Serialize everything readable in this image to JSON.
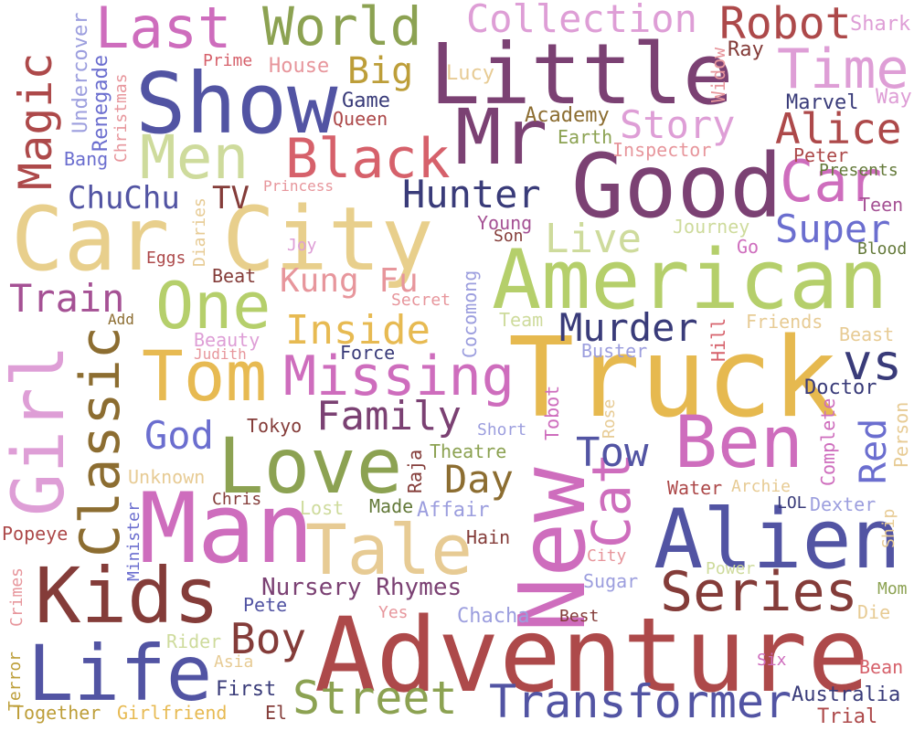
{
  "words": [
    {
      "text": "Car City",
      "color": "#e8cf8c"
    },
    {
      "text": "Truck",
      "color": "#e6b94f"
    },
    {
      "text": "Adventure",
      "color": "#ad494a"
    },
    {
      "text": "American",
      "color": "#b5cf6b"
    },
    {
      "text": "Man",
      "color": "#ce6dbd"
    },
    {
      "text": "New",
      "color": "#ce6dbd"
    },
    {
      "text": "Good",
      "color": "#7b4173"
    },
    {
      "text": "Show",
      "color": "#5254a3"
    },
    {
      "text": "Little",
      "color": "#7b4173"
    },
    {
      "text": "Alien",
      "color": "#5254a3"
    },
    {
      "text": "Love",
      "color": "#8ca252"
    },
    {
      "text": "Kids",
      "color": "#843c39"
    },
    {
      "text": "Life",
      "color": "#5254a3"
    },
    {
      "text": "Tale",
      "color": "#e7cb94"
    },
    {
      "text": "Ben",
      "color": "#ce6dbd"
    },
    {
      "text": "Mr",
      "color": "#7b4173"
    },
    {
      "text": "Tom",
      "color": "#e7ba52"
    },
    {
      "text": "Girl",
      "color": "#de9ed6"
    },
    {
      "text": "Missing",
      "color": "#ce6dbd"
    },
    {
      "text": "Men",
      "color": "#cedb9c"
    },
    {
      "text": "Last",
      "color": "#ce6dbd"
    },
    {
      "text": "One",
      "color": "#b5cf6b"
    },
    {
      "text": "Black",
      "color": "#d6616b"
    },
    {
      "text": "Transformer",
      "color": "#5254a3"
    },
    {
      "text": "Classic",
      "color": "#8c6d31"
    },
    {
      "text": "Car",
      "color": "#ce6dbd"
    },
    {
      "text": "Series",
      "color": "#843c39"
    },
    {
      "text": "Time",
      "color": "#de9ed6"
    },
    {
      "text": "World",
      "color": "#8ca252"
    },
    {
      "text": "Magic",
      "color": "#ad494a"
    },
    {
      "text": "Cat",
      "color": "#ce6dbd"
    },
    {
      "text": "Street",
      "color": "#8ca252"
    },
    {
      "text": "Robot",
      "color": "#ad494a"
    },
    {
      "text": "Collection",
      "color": "#de9ed6"
    },
    {
      "text": "Alice",
      "color": "#ad494a"
    },
    {
      "text": "Hunter",
      "color": "#393b79"
    },
    {
      "text": "Murder",
      "color": "#393b79"
    },
    {
      "text": "Boy",
      "color": "#843c39"
    },
    {
      "text": "Story",
      "color": "#de9ed6"
    },
    {
      "text": "vs",
      "color": "#393b79"
    },
    {
      "text": "Inside",
      "color": "#e7ba52"
    },
    {
      "text": "Family",
      "color": "#7b4173"
    },
    {
      "text": "Live",
      "color": "#cedb9c"
    },
    {
      "text": "Tow",
      "color": "#5254a3"
    },
    {
      "text": "Day",
      "color": "#8c6d31"
    },
    {
      "text": "Red",
      "color": "#6b6ecf"
    },
    {
      "text": "Train",
      "color": "#a55194"
    },
    {
      "text": "Super",
      "color": "#6b6ecf"
    },
    {
      "text": "Big",
      "color": "#bd9e39"
    },
    {
      "text": "God",
      "color": "#6b6ecf"
    },
    {
      "text": "Kung Fu",
      "color": "#e7969c"
    },
    {
      "text": "Nursery Rhymes",
      "color": "#7b4173"
    },
    {
      "text": "ChuChu",
      "color": "#5254a3"
    },
    {
      "text": "TV",
      "color": "#843c39"
    },
    {
      "text": "Undercover",
      "color": "#9c9ede"
    },
    {
      "text": "Renegade",
      "color": "#6b6ecf"
    },
    {
      "text": "Christmas",
      "color": "#e7969c"
    },
    {
      "text": "Bang",
      "color": "#6b6ecf"
    },
    {
      "text": "Prime",
      "color": "#d6616b"
    },
    {
      "text": "House",
      "color": "#e7969c"
    },
    {
      "text": "Game",
      "color": "#393b79"
    },
    {
      "text": "Queen",
      "color": "#ad494a"
    },
    {
      "text": "Lucy",
      "color": "#e7cb94"
    },
    {
      "text": "Academy",
      "color": "#8c6d31"
    },
    {
      "text": "Earth",
      "color": "#8ca252"
    },
    {
      "text": "Inspector",
      "color": "#e7969c"
    },
    {
      "text": "Ray",
      "color": "#843c39"
    },
    {
      "text": "Shark",
      "color": "#de9ed6"
    },
    {
      "text": "Widow",
      "color": "#e7969c"
    },
    {
      "text": "Marvel",
      "color": "#393b79"
    },
    {
      "text": "Way",
      "color": "#de9ed6"
    },
    {
      "text": "Peter",
      "color": "#ad494a"
    },
    {
      "text": "Presents",
      "color": "#637939"
    },
    {
      "text": "Teen",
      "color": "#a55194"
    },
    {
      "text": "Blood",
      "color": "#637939"
    },
    {
      "text": "Princess",
      "color": "#e7969c"
    },
    {
      "text": "Diaries",
      "color": "#e7cb94"
    },
    {
      "text": "Joy",
      "color": "#de9ed6"
    },
    {
      "text": "Eggs",
      "color": "#ad494a"
    },
    {
      "text": "Beat",
      "color": "#843c39"
    },
    {
      "text": "Young",
      "color": "#a55194"
    },
    {
      "text": "Son",
      "color": "#843c39"
    },
    {
      "text": "Journey",
      "color": "#cedb9c"
    },
    {
      "text": "Go",
      "color": "#ce6dbd"
    },
    {
      "text": "Cocomong",
      "color": "#9c9ede"
    },
    {
      "text": "Secret",
      "color": "#e7969c"
    },
    {
      "text": "Team",
      "color": "#cedb9c"
    },
    {
      "text": "Hill",
      "color": "#d6616b"
    },
    {
      "text": "Friends",
      "color": "#e7cb94"
    },
    {
      "text": "Beast",
      "color": "#e7cb94"
    },
    {
      "text": "Add",
      "color": "#8c6d31"
    },
    {
      "text": "Beauty",
      "color": "#de9ed6"
    },
    {
      "text": "Judith",
      "color": "#e7969c"
    },
    {
      "text": "Force",
      "color": "#393b79"
    },
    {
      "text": "Buster",
      "color": "#9c9ede"
    },
    {
      "text": "Doctor",
      "color": "#393b79"
    },
    {
      "text": "Person",
      "color": "#e7cb94"
    },
    {
      "text": "Complete",
      "color": "#ce6dbd"
    },
    {
      "text": "Tokyo",
      "color": "#843c39"
    },
    {
      "text": "Short",
      "color": "#9c9ede"
    },
    {
      "text": "Tobot",
      "color": "#ce6dbd"
    },
    {
      "text": "Rose",
      "color": "#e7cb94"
    },
    {
      "text": "Theatre",
      "color": "#8ca252"
    },
    {
      "text": "Raja",
      "color": "#843c39"
    },
    {
      "text": "Unknown",
      "color": "#e7cb94"
    },
    {
      "text": "Water",
      "color": "#ad494a"
    },
    {
      "text": "Archie",
      "color": "#e7cb94"
    },
    {
      "text": "Minister",
      "color": "#6b6ecf"
    },
    {
      "text": "Chris",
      "color": "#843c39"
    },
    {
      "text": "Lost",
      "color": "#cedb9c"
    },
    {
      "text": "Made",
      "color": "#637939"
    },
    {
      "text": "Affair",
      "color": "#9c9ede"
    },
    {
      "text": "LOL",
      "color": "#393b79"
    },
    {
      "text": "Dexter",
      "color": "#9c9ede"
    },
    {
      "text": "Ship",
      "color": "#e7cb94"
    },
    {
      "text": "Popeye",
      "color": "#ad494a"
    },
    {
      "text": "Hain",
      "color": "#843c39"
    },
    {
      "text": "City",
      "color": "#e7969c"
    },
    {
      "text": "Sugar",
      "color": "#9c9ede"
    },
    {
      "text": "Power",
      "color": "#cedb9c"
    },
    {
      "text": "Mom",
      "color": "#8ca252"
    },
    {
      "text": "Crimes",
      "color": "#e7969c"
    },
    {
      "text": "Pete",
      "color": "#5254a3"
    },
    {
      "text": "Yes",
      "color": "#e7969c"
    },
    {
      "text": "Chacha",
      "color": "#9c9ede"
    },
    {
      "text": "Best",
      "color": "#843c39"
    },
    {
      "text": "Die",
      "color": "#e7cb94"
    },
    {
      "text": "Rider",
      "color": "#cedb9c"
    },
    {
      "text": "Asia",
      "color": "#e7cb94"
    },
    {
      "text": "Six",
      "color": "#ce6dbd"
    },
    {
      "text": "Bean",
      "color": "#d6616b"
    },
    {
      "text": "Terror",
      "color": "#bd9e39"
    },
    {
      "text": "First",
      "color": "#393b79"
    },
    {
      "text": "Australia",
      "color": "#393b79"
    },
    {
      "text": "Together",
      "color": "#bd9e39"
    },
    {
      "text": "Girlfriend",
      "color": "#e7ba52"
    },
    {
      "text": "El",
      "color": "#843c39"
    },
    {
      "text": "Trial",
      "color": "#ad494a"
    }
  ]
}
